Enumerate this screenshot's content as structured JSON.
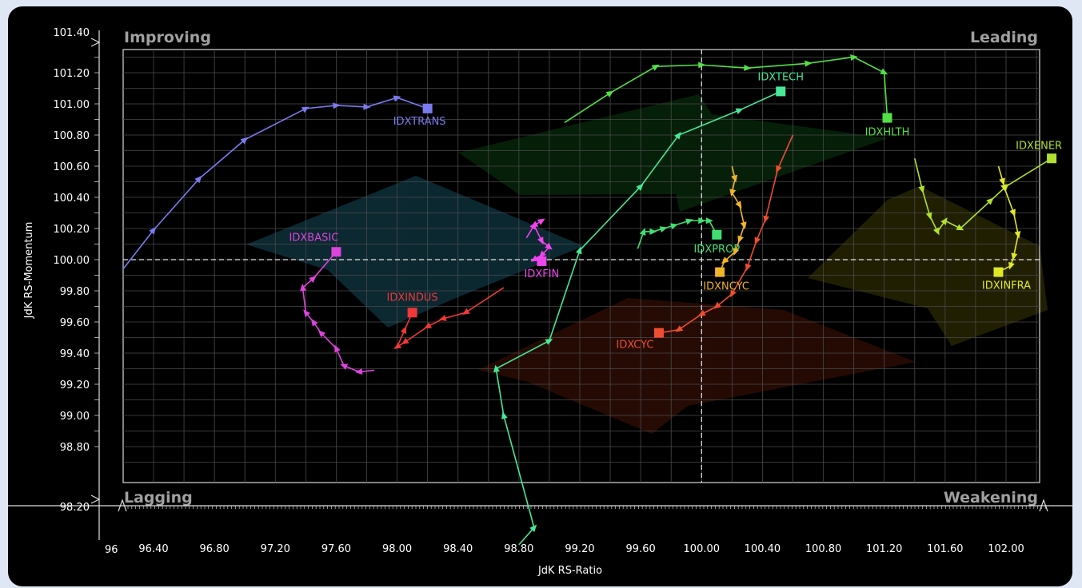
{
  "chart_data": {
    "type": "scatter",
    "subtype": "relative-rotation-graph",
    "xlabel": "JdK RS-Ratio",
    "ylabel": "JdK RS-Momentum",
    "xlim": [
      96,
      102.5
    ],
    "ylim": [
      98.2,
      101.4
    ],
    "x_min_label": "96",
    "y_min_label": "98.20",
    "y_max_label": "101.40",
    "x_ticks": [
      "96.40",
      "96.80",
      "97.20",
      "97.60",
      "98.00",
      "98.40",
      "98.80",
      "99.20",
      "99.60",
      "100.00",
      "100.40",
      "100.80",
      "101.20",
      "101.60",
      "102.00"
    ],
    "y_ticks": [
      "98.80",
      "99.00",
      "99.20",
      "99.40",
      "99.60",
      "99.80",
      "100.00",
      "100.20",
      "100.40",
      "100.60",
      "100.80",
      "101.00",
      "101.20"
    ],
    "quadrants": {
      "top_left": "Improving",
      "top_right": "Leading",
      "bottom_left": "Lagging",
      "bottom_right": "Weakening"
    },
    "center": [
      100,
      100
    ],
    "grid": true,
    "series": [
      {
        "name": "IDXTRANS",
        "color": "#7b7bf0",
        "x": [
          96.2,
          96.4,
          96.7,
          97.0,
          97.4,
          97.6,
          97.8,
          98.0,
          98.2
        ],
        "y": [
          99.94,
          100.19,
          100.52,
          100.77,
          100.97,
          100.99,
          100.98,
          101.04,
          100.97
        ]
      },
      {
        "name": "IDXTECH",
        "color": "#48e896",
        "x": [
          98.8,
          98.9,
          98.7,
          98.65,
          99.0,
          99.2,
          99.6,
          99.85,
          100.25,
          100.52
        ],
        "y": [
          98.17,
          98.28,
          99.0,
          99.3,
          99.48,
          100.06,
          100.47,
          100.8,
          100.96,
          101.08
        ]
      },
      {
        "name": "IDXHLTH",
        "color": "#53e046",
        "x": [
          99.1,
          99.4,
          99.7,
          100.0,
          100.3,
          100.7,
          101.0,
          101.2,
          101.22
        ],
        "y": [
          100.88,
          101.07,
          101.24,
          101.25,
          101.23,
          101.26,
          101.3,
          101.2,
          100.91
        ]
      },
      {
        "name": "IDXENER",
        "color": "#b0e030",
        "x": [
          101.4,
          101.45,
          101.5,
          101.55,
          101.6,
          101.7,
          101.9,
          102.0,
          102.3
        ],
        "y": [
          100.65,
          100.45,
          100.28,
          100.18,
          100.25,
          100.2,
          100.38,
          100.47,
          100.65
        ]
      },
      {
        "name": "IDXINFRA",
        "color": "#e0e828",
        "x": [
          101.95,
          101.98,
          101.99,
          102.05,
          102.08,
          102.05,
          102.03,
          101.95
        ],
        "y": [
          100.6,
          100.5,
          100.46,
          100.3,
          100.16,
          100.02,
          99.96,
          99.92
        ]
      },
      {
        "name": "IDXBASIC",
        "color": "#dd44dd",
        "x": [
          97.85,
          97.75,
          97.65,
          97.6,
          97.5,
          97.45,
          97.4,
          97.38,
          97.45,
          97.6
        ],
        "y": [
          99.29,
          99.28,
          99.32,
          99.43,
          99.53,
          99.6,
          99.66,
          99.82,
          99.88,
          100.05
        ]
      },
      {
        "name": "IDXFIN",
        "color": "#ee44ee",
        "x": [
          98.85,
          98.9,
          98.95,
          98.9,
          98.95,
          99.0,
          98.95,
          98.9,
          98.95
        ],
        "y": [
          100.14,
          100.22,
          100.25,
          100.22,
          100.12,
          100.08,
          100.03,
          100.0,
          99.99
        ]
      },
      {
        "name": "IDXINDUS",
        "color": "#ef3838",
        "x": [
          98.7,
          98.45,
          98.3,
          98.2,
          98.05,
          98.0,
          98.05,
          98.1
        ],
        "y": [
          99.82,
          99.66,
          99.62,
          99.57,
          99.47,
          99.44,
          99.55,
          99.66
        ]
      },
      {
        "name": "IDXCYC",
        "color": "#ef4d30",
        "x": [
          100.6,
          100.5,
          100.42,
          100.36,
          100.3,
          100.2,
          100.1,
          100.0,
          99.85,
          99.72
        ],
        "y": [
          100.8,
          100.58,
          100.26,
          100.12,
          99.95,
          99.78,
          99.7,
          99.65,
          99.55,
          99.53
        ]
      },
      {
        "name": "IDXPROP",
        "color": "#40e070",
        "x": [
          99.58,
          99.62,
          99.68,
          99.75,
          99.82,
          99.92,
          100.0,
          100.05,
          100.1
        ],
        "y": [
          100.07,
          100.18,
          100.18,
          100.2,
          100.22,
          100.25,
          100.25,
          100.25,
          100.16
        ]
      },
      {
        "name": "IDXNCYC",
        "color": "#f0b428",
        "x": [
          100.2,
          100.22,
          100.2,
          100.25,
          100.28,
          100.25,
          100.22,
          100.15,
          100.12
        ],
        "y": [
          100.6,
          100.52,
          100.43,
          100.35,
          100.22,
          100.13,
          100.05,
          99.99,
          99.92
        ]
      }
    ]
  }
}
